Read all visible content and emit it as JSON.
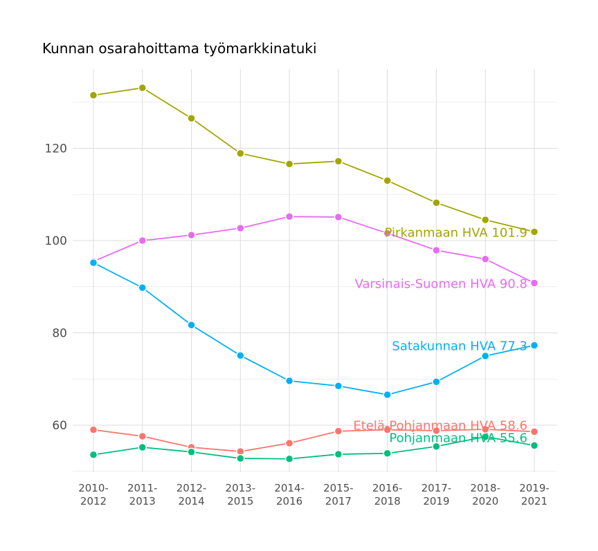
{
  "chart_data": {
    "type": "line",
    "title": "Kunnan osarahoittama työmarkkinatuki",
    "xlabel": "",
    "ylabel": "",
    "categories": [
      "2010-\n2012",
      "2011-\n2013",
      "2012-\n2014",
      "2013-\n2015",
      "2014-\n2016",
      "2015-\n2017",
      "2016-\n2018",
      "2017-\n2019",
      "2018-\n2020",
      "2019-\n2021"
    ],
    "ylim": [
      49.5,
      137
    ],
    "yticks": [
      60,
      80,
      100,
      120
    ],
    "grid": true,
    "legend": "none (end-of-line labels)",
    "series": [
      {
        "name": "Pirkanmaan HVA",
        "end_label": "Pirkanmaan HVA 101.9",
        "color": "#A3A500",
        "values": [
          131.5,
          133.1,
          126.5,
          118.9,
          116.6,
          117.2,
          113.0,
          108.2,
          104.5,
          101.9
        ]
      },
      {
        "name": "Varsinais-Suomen HVA",
        "end_label": "Varsinais-Suomen HVA 90.8",
        "color": "#E76BF3",
        "values": [
          95.5,
          100.0,
          101.2,
          102.7,
          105.2,
          105.1,
          101.6,
          97.9,
          96.0,
          90.8
        ]
      },
      {
        "name": "Satakunnan HVA",
        "end_label": "Satakunnan HVA 77.3",
        "color": "#00B0F6",
        "values": [
          95.2,
          89.8,
          81.7,
          75.1,
          69.6,
          68.5,
          66.6,
          69.4,
          75.0,
          77.3
        ]
      },
      {
        "name": "Etelä-Pohjanmaan HVA",
        "end_label": "Etelä-Pohjanmaan HVA 58.6",
        "color": "#F8766D",
        "values": [
          59.0,
          57.6,
          55.2,
          54.3,
          56.1,
          58.7,
          59.0,
          58.8,
          59.1,
          58.6
        ]
      },
      {
        "name": "Pohjanmaan HVA",
        "end_label": "Pohjanmaan HVA 55.6",
        "color": "#00BF7D",
        "values": [
          53.6,
          55.2,
          54.2,
          52.8,
          52.7,
          53.7,
          53.9,
          55.4,
          57.5,
          55.6
        ]
      }
    ]
  }
}
